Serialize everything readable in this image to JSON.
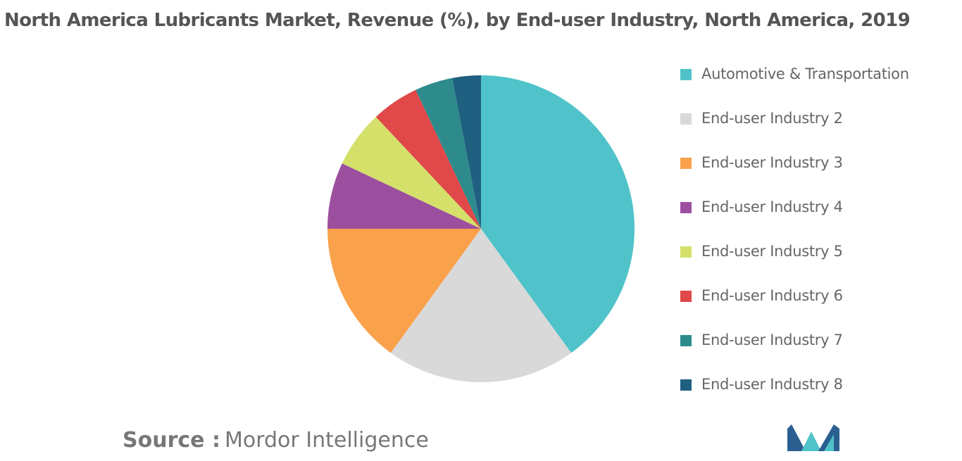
{
  "chart_data": {
    "type": "pie",
    "title": "North America Lubricants Market, Revenue (%), by End-user Industry, North America, 2019",
    "legend_position": "right",
    "slices": [
      {
        "label": "Automotive & Transportation",
        "value": 40,
        "color": "#4fc3c9"
      },
      {
        "label": "End-user Industry 2",
        "value": 20,
        "color": "#d9d9d9"
      },
      {
        "label": "End-user Industry 3",
        "value": 15,
        "color": "#f9a14b"
      },
      {
        "label": "End-user Industry 4",
        "value": 7,
        "color": "#9c4f9f"
      },
      {
        "label": "End-user Industry 5",
        "value": 6,
        "color": "#d4e06a"
      },
      {
        "label": "End-user Industry 6",
        "value": 5,
        "color": "#e0484a"
      },
      {
        "label": "End-user Industry 7",
        "value": 4,
        "color": "#2e8b8b"
      },
      {
        "label": "End-user Industry 8",
        "value": 3,
        "color": "#1f5f80"
      }
    ]
  },
  "source": {
    "label": "Source :",
    "text": "Mordor Intelligence"
  },
  "logo": {
    "icon": "mordor-intelligence-logo-icon",
    "colors": [
      "#2a5f8f",
      "#4fc3c9"
    ]
  }
}
